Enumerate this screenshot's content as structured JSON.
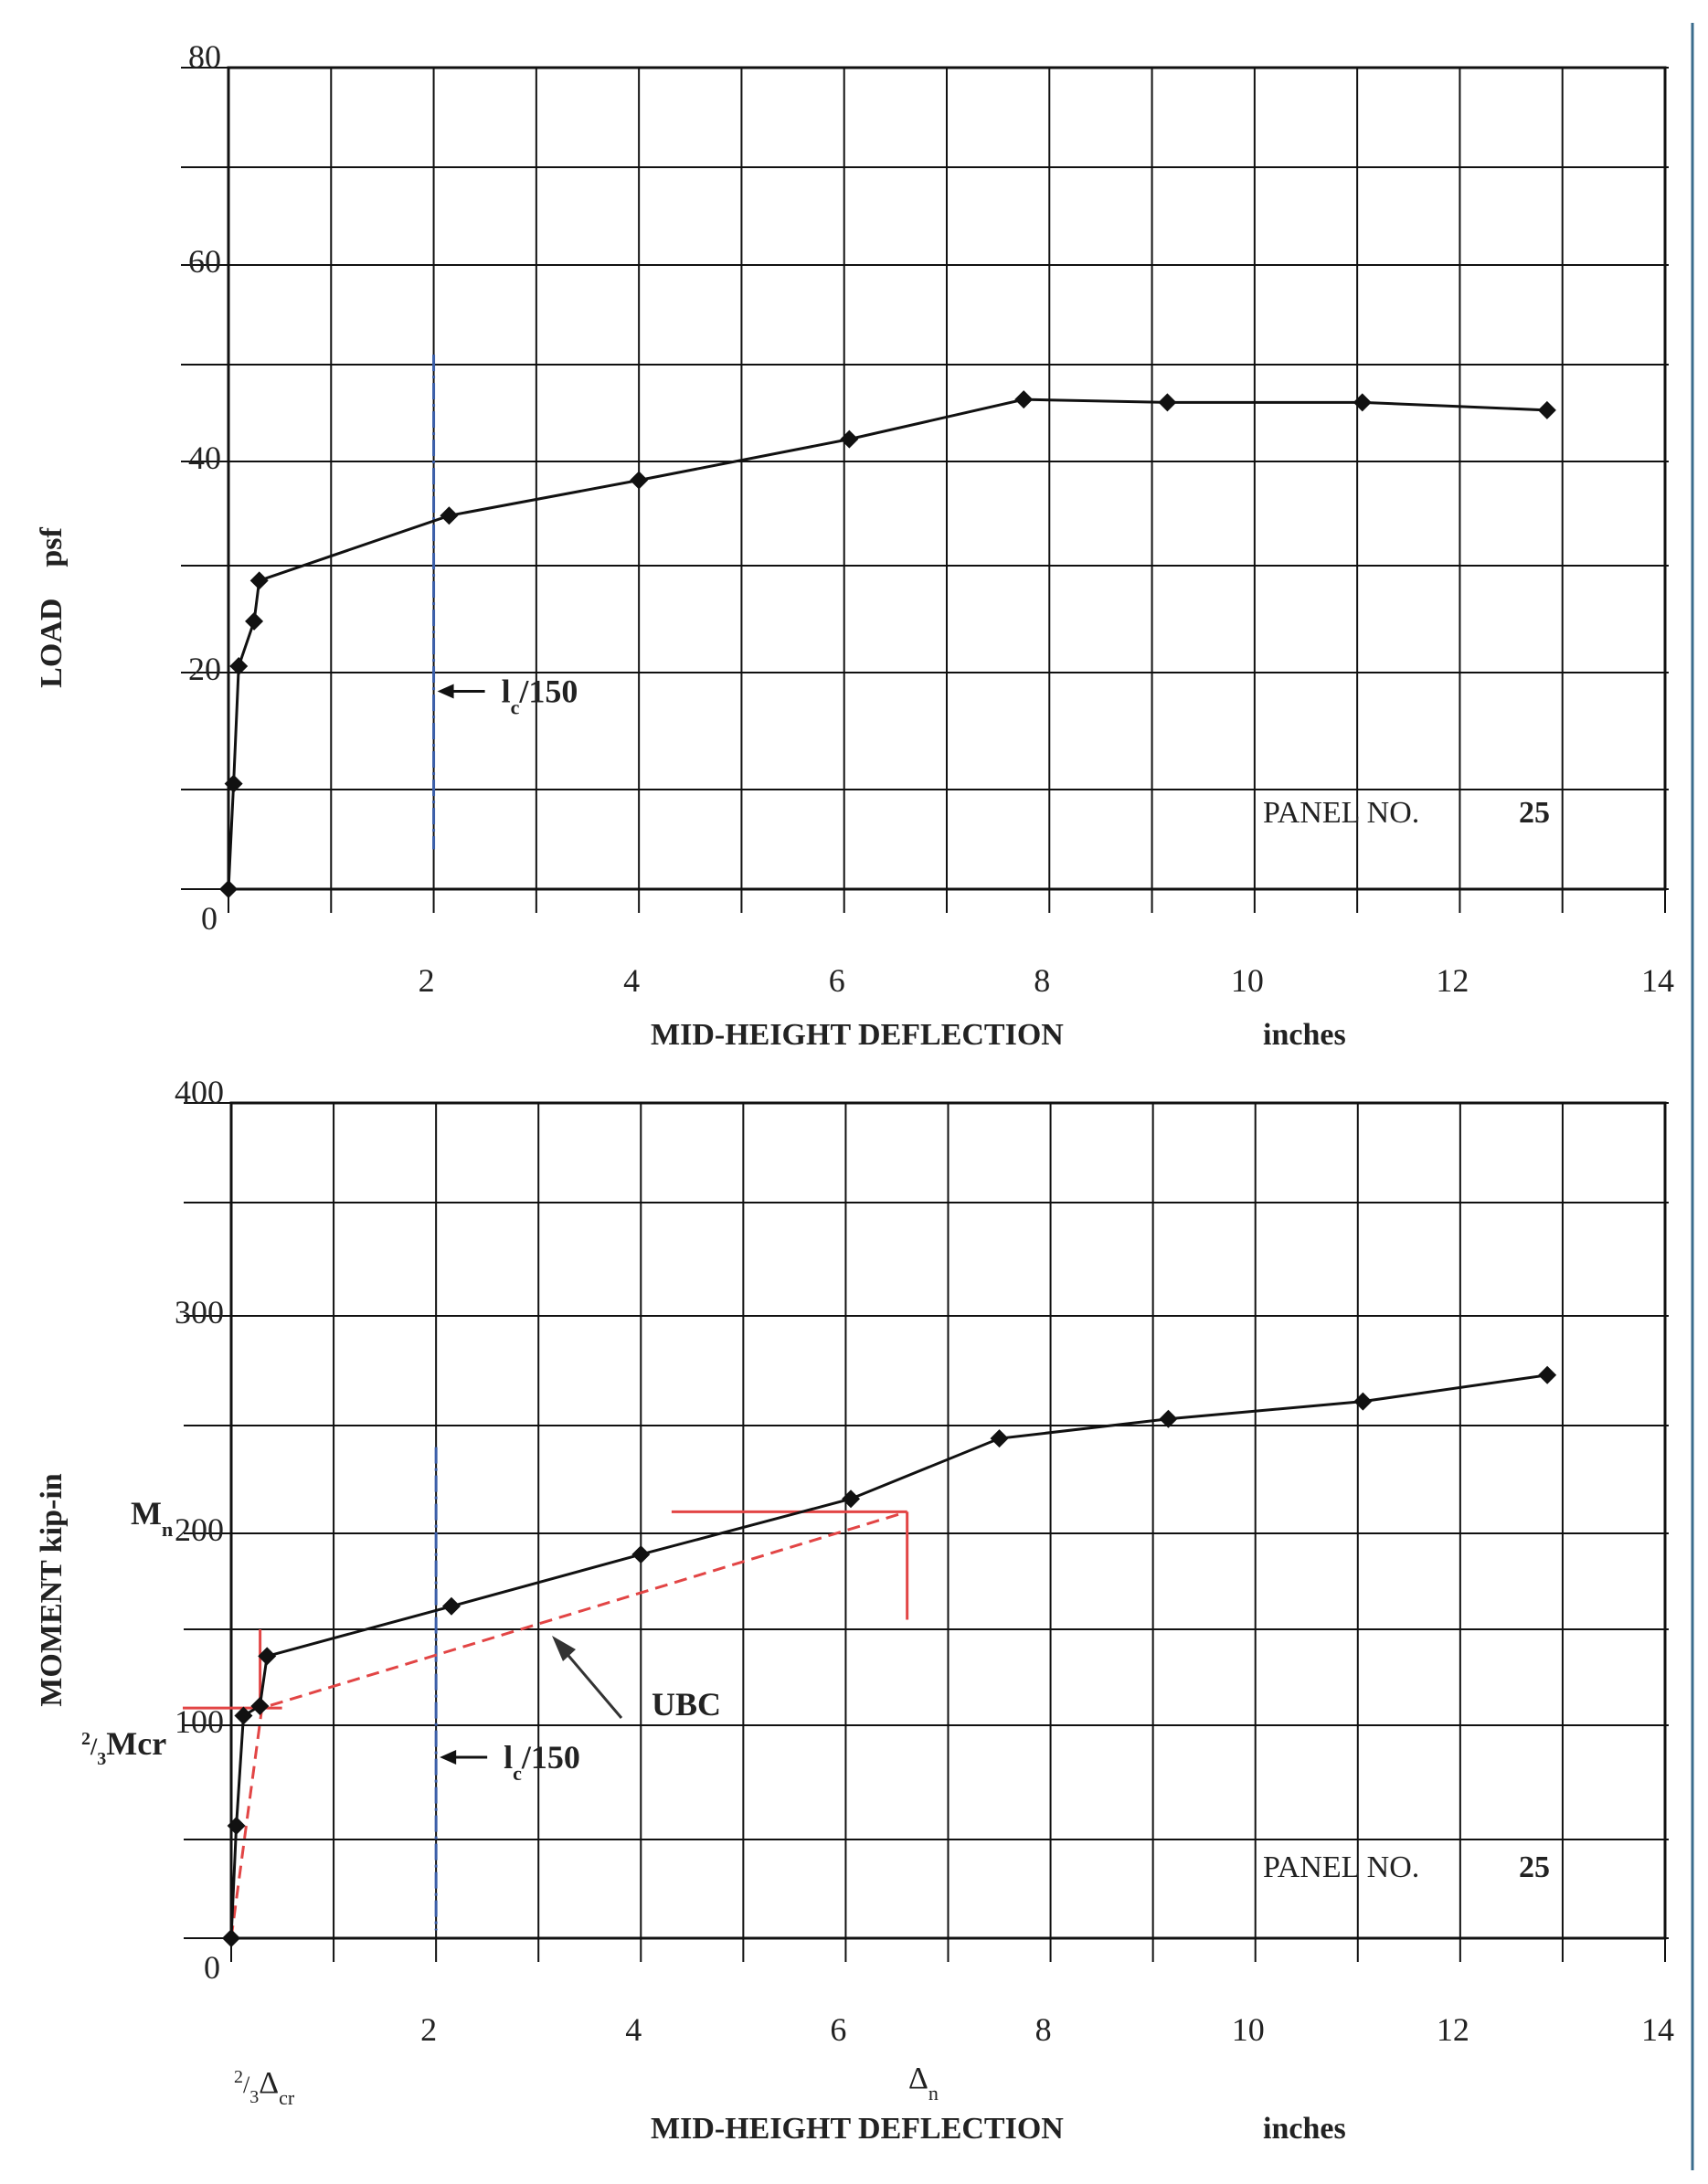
{
  "chart_data": [
    {
      "type": "line",
      "xlabel": "MID-HEIGHT DEFLECTION",
      "xunit": "inches",
      "ylabel": "LOAD    psf",
      "xlim": [
        0,
        14
      ],
      "ylim": [
        0,
        80
      ],
      "x_ticks": [
        "2",
        "4",
        "6",
        "8",
        "10",
        "12",
        "14"
      ],
      "x_origin_label": "0",
      "y_ticks": [
        "20",
        "40",
        "60",
        "80"
      ],
      "grid": true,
      "panel_label": "PANEL NO.",
      "panel_number": "25",
      "series": [
        {
          "x": [
            0.0,
            0.05,
            0.1,
            0.25,
            0.3,
            2.15,
            4.0,
            6.05,
            7.75,
            9.15,
            11.05,
            12.85
          ],
          "y": [
            0,
            10.5,
            20.6,
            24.8,
            28.6,
            34.8,
            38.2,
            42.3,
            46.4,
            46.1,
            46.1,
            45.3
          ]
        }
      ],
      "annotations": [
        {
          "text": "l",
          "subscript": "c",
          "suffix": "/150",
          "x": 2.0
        }
      ]
    },
    {
      "type": "line",
      "xlabel": "MID-HEIGHT DEFLECTION",
      "xunit": "inches",
      "ylabel": "MOMENT kip-in",
      "xlim": [
        0,
        14
      ],
      "ylim": [
        0,
        400
      ],
      "x_ticks": [
        "2",
        "4",
        "6",
        "8",
        "10",
        "12",
        "14"
      ],
      "x_origin_label": "0",
      "y_ticks": [
        "100",
        "200",
        "300",
        "400"
      ],
      "grid": true,
      "panel_label": "PANEL NO.",
      "panel_number": "25",
      "series": [
        {
          "x": [
            0.0,
            0.05,
            0.12,
            0.28,
            0.35,
            2.15,
            4.0,
            6.05,
            7.5,
            9.15,
            11.05,
            12.85
          ],
          "y": [
            0,
            56,
            105,
            110,
            136,
            162,
            189,
            216,
            244,
            253,
            261,
            273
          ]
        }
      ],
      "ubc_curve": {
        "color": "#e24545",
        "x": [
          0.0,
          0.3,
          6.6
        ],
        "y": [
          0,
          109,
          210
        ]
      },
      "reference_lines": [
        {
          "label": "M",
          "subscript": "n",
          "y": 210
        },
        {
          "label": "2/3Mcr",
          "y": 109
        }
      ],
      "annotations": [
        {
          "text": "l",
          "subscript": "c",
          "suffix": "/150",
          "x": 2.0
        },
        {
          "text": "UBC"
        },
        {
          "text": "M",
          "subscript": "n"
        },
        {
          "text": "Mcr",
          "prefix_sup": "2",
          "prefix_sub": "3"
        },
        {
          "text": "Δ",
          "subscript": "cr",
          "prefix_sup": "2",
          "prefix_sub": "3"
        },
        {
          "text": "Δ",
          "subscript": "n"
        }
      ]
    }
  ]
}
